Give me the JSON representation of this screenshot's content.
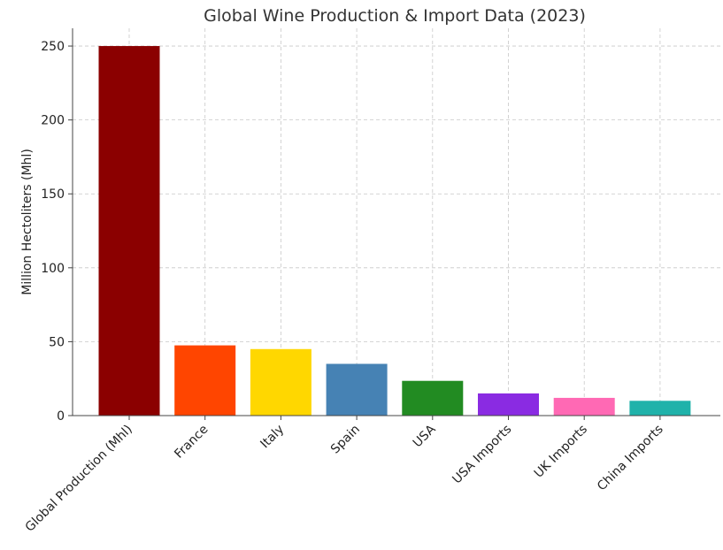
{
  "chart_data": {
    "type": "bar",
    "title": "Global Wine Production & Import Data (2023)",
    "xlabel": "",
    "ylabel": "Million Hectoliters (Mhl)",
    "ylim": [
      0,
      262
    ],
    "yticks": [
      0,
      50,
      100,
      150,
      200,
      250
    ],
    "grid": true,
    "categories": [
      "Global Production (Mhl)",
      "France",
      "Italy",
      "Spain",
      "USA",
      "USA Imports",
      "UK Imports",
      "China Imports"
    ],
    "values": [
      250,
      47.5,
      45,
      35,
      23.5,
      15,
      12,
      10
    ],
    "colors": [
      "#8b0000",
      "#ff4500",
      "#ffd700",
      "#4682b4",
      "#228b22",
      "#8a2be2",
      "#ff69b4",
      "#20b2aa"
    ]
  }
}
